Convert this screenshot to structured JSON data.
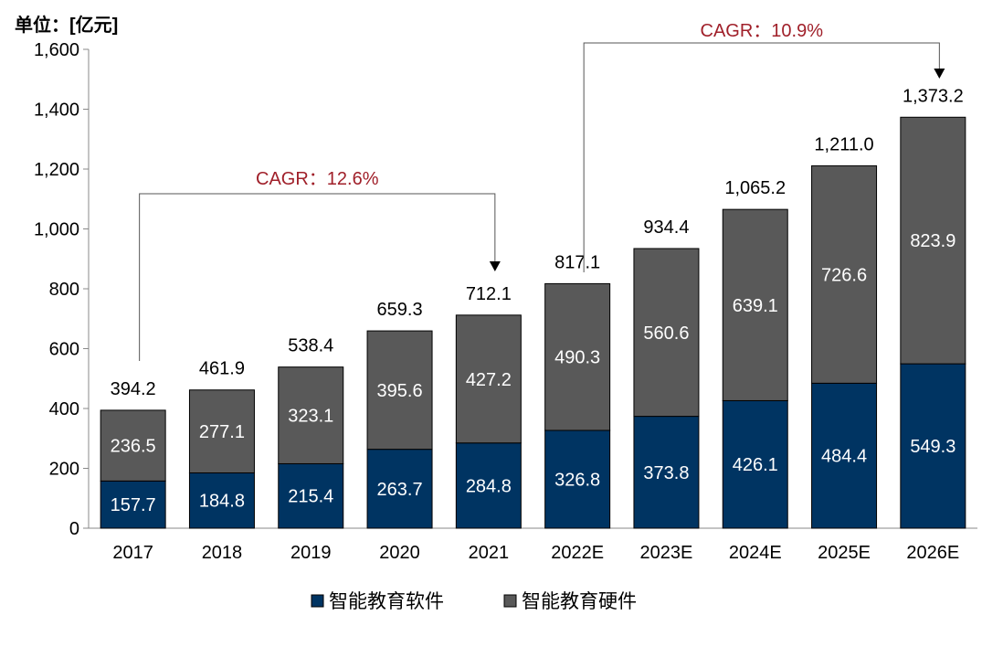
{
  "chart_data": {
    "type": "bar",
    "stacked": true,
    "unit_label": "单位：[亿元]",
    "categories": [
      "2017",
      "2018",
      "2019",
      "2020",
      "2021",
      "2022E",
      "2023E",
      "2024E",
      "2025E",
      "2026E"
    ],
    "series": [
      {
        "name": "智能教育软件",
        "color": "#003462",
        "values": [
          157.7,
          184.8,
          215.4,
          263.7,
          284.8,
          326.8,
          373.8,
          426.1,
          484.4,
          549.3
        ]
      },
      {
        "name": "智能教育硬件",
        "color": "#595959",
        "values": [
          236.5,
          277.1,
          323.1,
          395.6,
          427.2,
          490.3,
          560.6,
          639.1,
          726.6,
          823.9
        ]
      }
    ],
    "totals": [
      "394.2",
      "461.9",
      "538.4",
      "659.3",
      "712.1",
      "817.1",
      "934.4",
      "1,065.2",
      "1,211.0",
      "1,373.2"
    ],
    "ylim": [
      0,
      1600
    ],
    "yticks": [
      0,
      200,
      400,
      600,
      800,
      1000,
      1200,
      1400,
      1600
    ],
    "ytick_labels": [
      "0",
      "200",
      "400",
      "600",
      "800",
      "1,000",
      "1,200",
      "1,400",
      "1,600"
    ],
    "legend_position": "bottom",
    "grid": false,
    "annotations": [
      {
        "text": "CAGR：12.6%",
        "from": "2017",
        "to": "2021",
        "color": "#a0202a"
      },
      {
        "text": "CAGR：10.9%",
        "from": "2022E",
        "to": "2026E",
        "color": "#a0202a"
      }
    ]
  }
}
